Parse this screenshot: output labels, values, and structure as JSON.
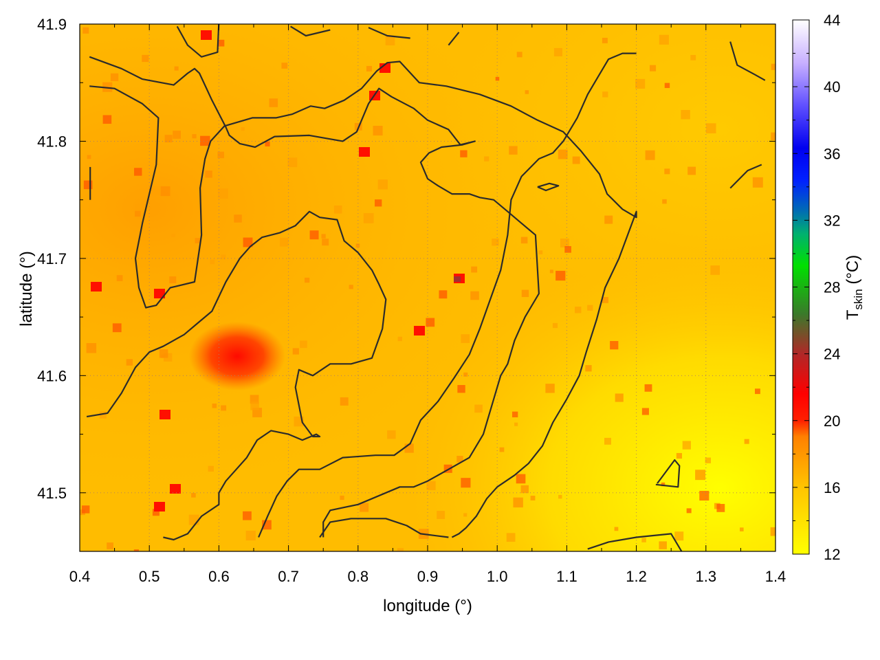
{
  "chart_data": {
    "type": "heatmap",
    "title": "",
    "xlabel": "longitude (°)",
    "ylabel": "latitude (°)",
    "colorbar_label_main": "T",
    "colorbar_label_sub": "skin",
    "colorbar_label_unit": " (°C)",
    "xlim": [
      0.4,
      1.4
    ],
    "ylim": [
      41.45,
      41.9
    ],
    "x_ticks": [
      "0.4",
      "0.5",
      "0.6",
      "0.7",
      "0.8",
      "0.9",
      "1.0",
      "1.1",
      "1.2",
      "1.3",
      "1.4"
    ],
    "y_ticks": [
      "41.5",
      "41.6",
      "41.7",
      "41.8",
      "41.9"
    ],
    "colorbar_ticks": [
      "12",
      "16",
      "20",
      "24",
      "28",
      "32",
      "36",
      "40",
      "44"
    ],
    "colorbar_range": [
      12,
      44
    ],
    "grid": true,
    "colormap": [
      "#ffff00",
      "#ffc800",
      "#ff9600",
      "#ff3c00",
      "#ff0000",
      "#b02828",
      "#4a6a2a",
      "#00c000",
      "#00ff30",
      "#009090",
      "#0040ff",
      "#0000ff",
      "#3030ff",
      "#9060ff",
      "#c8a8ff",
      "#ffffff"
    ],
    "contour_color": "#2b2b2b",
    "contours": [
      [
        [
          0.414,
          41.872
        ],
        [
          0.46,
          41.862
        ],
        [
          0.49,
          41.853
        ],
        [
          0.535,
          41.848
        ],
        [
          0.555,
          41.858
        ],
        [
          0.565,
          41.862
        ],
        [
          0.572,
          41.858
        ],
        [
          0.59,
          41.835
        ],
        [
          0.61,
          41.812
        ],
        [
          0.615,
          41.805
        ],
        [
          0.63,
          41.798
        ],
        [
          0.652,
          41.795
        ],
        [
          0.68,
          41.804
        ],
        [
          0.73,
          41.805
        ],
        [
          0.778,
          41.8
        ],
        [
          0.798,
          41.808
        ],
        [
          0.815,
          41.832
        ],
        [
          0.83,
          41.845
        ],
        [
          0.848,
          41.838
        ],
        [
          0.88,
          41.828
        ],
        [
          0.9,
          41.818
        ],
        [
          0.93,
          41.81
        ],
        [
          0.947,
          41.797
        ],
        [
          0.968,
          41.8
        ],
        [
          0.95,
          41.797
        ],
        [
          0.92,
          41.795
        ],
        [
          0.902,
          41.79
        ],
        [
          0.89,
          41.782
        ],
        [
          0.9,
          41.768
        ],
        [
          0.915,
          41.762
        ],
        [
          0.935,
          41.755
        ],
        [
          0.96,
          41.755
        ],
        [
          0.975,
          41.752
        ],
        [
          0.995,
          41.75
        ],
        [
          1.015,
          41.74
        ],
        [
          1.035,
          41.73
        ],
        [
          1.055,
          41.72
        ],
        [
          1.06,
          41.67
        ],
        [
          1.04,
          41.65
        ],
        [
          1.025,
          41.63
        ],
        [
          1.015,
          41.61
        ],
        [
          1.005,
          41.6
        ],
        [
          1.0,
          41.59
        ],
        [
          0.99,
          41.57
        ],
        [
          0.98,
          41.55
        ],
        [
          0.96,
          41.53
        ],
        [
          0.93,
          41.52
        ],
        [
          0.9,
          41.51
        ],
        [
          0.88,
          41.505
        ],
        [
          0.86,
          41.505
        ],
        [
          0.8,
          41.49
        ],
        [
          0.76,
          41.485
        ],
        [
          0.75,
          41.475
        ],
        [
          0.75,
          41.462
        ]
      ],
      [
        [
          0.414,
          41.847
        ],
        [
          0.45,
          41.845
        ],
        [
          0.49,
          41.832
        ],
        [
          0.513,
          41.82
        ],
        [
          0.51,
          41.78
        ],
        [
          0.49,
          41.73
        ],
        [
          0.48,
          41.7
        ],
        [
          0.485,
          41.675
        ],
        [
          0.495,
          41.658
        ],
        [
          0.51,
          41.66
        ],
        [
          0.53,
          41.675
        ],
        [
          0.565,
          41.68
        ],
        [
          0.575,
          41.72
        ],
        [
          0.573,
          41.76
        ],
        [
          0.58,
          41.785
        ],
        [
          0.588,
          41.8
        ],
        [
          0.608,
          41.813
        ],
        [
          0.648,
          41.82
        ],
        [
          0.682,
          41.82
        ],
        [
          0.705,
          41.823
        ],
        [
          0.732,
          41.83
        ],
        [
          0.752,
          41.828
        ],
        [
          0.78,
          41.835
        ],
        [
          0.805,
          41.845
        ],
        [
          0.827,
          41.86
        ],
        [
          0.842,
          41.867
        ],
        [
          0.86,
          41.868
        ],
        [
          0.888,
          41.85
        ],
        [
          0.927,
          41.847
        ],
        [
          0.975,
          41.84
        ],
        [
          1.02,
          41.83
        ],
        [
          1.058,
          41.818
        ],
        [
          1.095,
          41.808
        ],
        [
          1.12,
          41.792
        ],
        [
          1.147,
          41.772
        ],
        [
          1.158,
          41.755
        ],
        [
          1.18,
          41.742
        ],
        [
          1.2,
          41.735
        ],
        [
          1.2,
          41.74
        ],
        [
          1.175,
          41.7
        ],
        [
          1.155,
          41.675
        ],
        [
          1.143,
          41.648
        ],
        [
          1.128,
          41.62
        ],
        [
          1.118,
          41.6
        ],
        [
          1.1,
          41.58
        ],
        [
          1.08,
          41.56
        ],
        [
          1.065,
          41.54
        ],
        [
          1.045,
          41.525
        ],
        [
          1.025,
          41.515
        ],
        [
          1.0,
          41.505
        ],
        [
          0.985,
          41.495
        ],
        [
          0.97,
          41.48
        ],
        [
          0.955,
          41.47
        ],
        [
          0.945,
          41.465
        ],
        [
          0.935,
          41.462
        ]
      ],
      [
        [
          0.41,
          41.565
        ],
        [
          0.44,
          41.568
        ],
        [
          0.46,
          41.585
        ],
        [
          0.48,
          41.607
        ],
        [
          0.5,
          41.62
        ],
        [
          0.52,
          41.625
        ],
        [
          0.55,
          41.635
        ],
        [
          0.57,
          41.645
        ],
        [
          0.59,
          41.655
        ],
        [
          0.61,
          41.68
        ],
        [
          0.63,
          41.7
        ],
        [
          0.645,
          41.71
        ],
        [
          0.662,
          41.718
        ],
        [
          0.688,
          41.722
        ],
        [
          0.71,
          41.728
        ],
        [
          0.73,
          41.74
        ],
        [
          0.745,
          41.735
        ],
        [
          0.77,
          41.733
        ],
        [
          0.78,
          41.715
        ],
        [
          0.8,
          41.705
        ],
        [
          0.82,
          41.69
        ],
        [
          0.83,
          41.678
        ],
        [
          0.84,
          41.665
        ],
        [
          0.835,
          41.64
        ],
        [
          0.82,
          41.615
        ],
        [
          0.79,
          41.61
        ],
        [
          0.76,
          41.61
        ],
        [
          0.735,
          41.6
        ],
        [
          0.715,
          41.605
        ],
        [
          0.71,
          41.59
        ],
        [
          0.72,
          41.56
        ],
        [
          0.735,
          41.548
        ],
        [
          0.745,
          41.548
        ],
        [
          0.74,
          41.55
        ],
        [
          0.72,
          41.545
        ],
        [
          0.7,
          41.55
        ],
        [
          0.675,
          41.553
        ],
        [
          0.655,
          41.545
        ],
        [
          0.64,
          41.53
        ],
        [
          0.625,
          41.52
        ],
        [
          0.61,
          41.51
        ],
        [
          0.6,
          41.5
        ],
        [
          0.6,
          41.49
        ],
        [
          0.575,
          41.48
        ],
        [
          0.555,
          41.465
        ],
        [
          0.535,
          41.46
        ],
        [
          0.52,
          41.462
        ]
      ],
      [
        [
          0.657,
          41.462
        ],
        [
          0.67,
          41.48
        ],
        [
          0.683,
          41.497
        ],
        [
          0.698,
          41.51
        ],
        [
          0.715,
          41.52
        ],
        [
          0.745,
          41.52
        ],
        [
          0.778,
          41.53
        ],
        [
          0.825,
          41.532
        ],
        [
          0.852,
          41.532
        ],
        [
          0.875,
          41.542
        ],
        [
          0.89,
          41.562
        ],
        [
          0.915,
          41.578
        ],
        [
          0.938,
          41.598
        ],
        [
          0.96,
          41.618
        ],
        [
          0.975,
          41.64
        ],
        [
          0.99,
          41.665
        ],
        [
          1.005,
          41.69
        ],
        [
          1.015,
          41.72
        ],
        [
          1.02,
          41.75
        ],
        [
          1.035,
          41.77
        ],
        [
          1.06,
          41.785
        ],
        [
          1.08,
          41.79
        ],
        [
          1.095,
          41.8
        ],
        [
          1.115,
          41.82
        ],
        [
          1.13,
          41.84
        ],
        [
          1.145,
          41.855
        ],
        [
          1.16,
          41.87
        ],
        [
          1.18,
          41.875
        ],
        [
          1.2,
          41.875
        ]
      ],
      [
        [
          0.745,
          41.462
        ],
        [
          0.76,
          41.475
        ],
        [
          0.79,
          41.478
        ],
        [
          0.84,
          41.478
        ],
        [
          0.87,
          41.472
        ],
        [
          0.89,
          41.465
        ],
        [
          0.93,
          41.462
        ]
      ],
      [
        [
          1.13,
          41.452
        ],
        [
          1.16,
          41.458
        ],
        [
          1.2,
          41.462
        ],
        [
          1.25,
          41.465
        ],
        [
          1.265,
          41.45
        ]
      ],
      [
        [
          1.335,
          41.76
        ],
        [
          1.36,
          41.775
        ],
        [
          1.38,
          41.78
        ]
      ],
      [
        [
          1.335,
          41.885
        ],
        [
          1.345,
          41.865
        ],
        [
          1.37,
          41.857
        ],
        [
          1.385,
          41.852
        ]
      ],
      [
        [
          0.415,
          41.778
        ],
        [
          0.415,
          41.75
        ]
      ],
      [
        [
          0.54,
          41.898
        ],
        [
          0.555,
          41.882
        ],
        [
          0.575,
          41.872
        ],
        [
          0.598,
          41.876
        ],
        [
          0.6,
          41.902
        ]
      ],
      [
        [
          0.703,
          41.898
        ],
        [
          0.725,
          41.89
        ],
        [
          0.76,
          41.895
        ]
      ],
      [
        [
          0.815,
          41.897
        ],
        [
          0.842,
          41.89
        ],
        [
          0.875,
          41.888
        ]
      ],
      [
        [
          0.93,
          41.882
        ],
        [
          0.945,
          41.893
        ]
      ],
      [
        [
          1.23,
          41.508
        ],
        [
          1.255,
          41.528
        ],
        [
          1.262,
          41.523
        ],
        [
          1.26,
          41.505
        ],
        [
          1.228,
          41.507
        ]
      ],
      [
        [
          1.058,
          41.761
        ],
        [
          1.075,
          41.764
        ],
        [
          1.088,
          41.762
        ],
        [
          1.07,
          41.758
        ],
        [
          1.058,
          41.761
        ]
      ]
    ]
  }
}
